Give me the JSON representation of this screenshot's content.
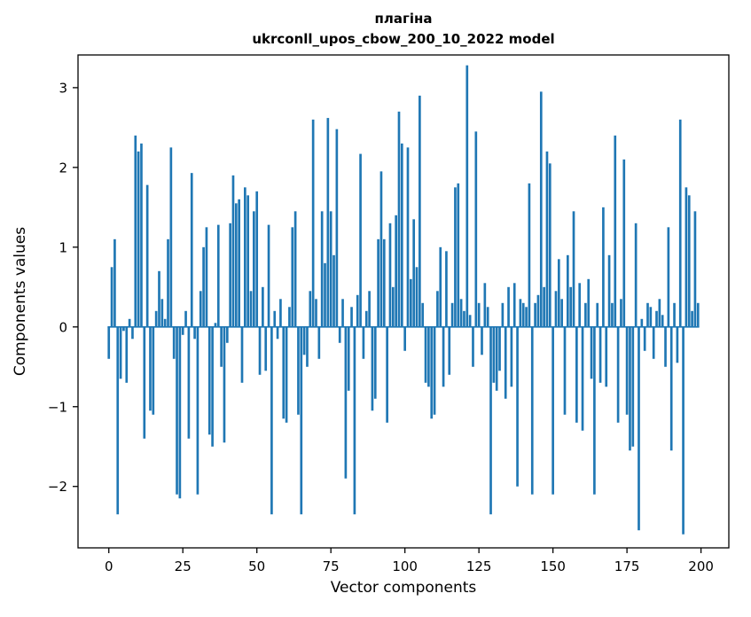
{
  "chart_data": {
    "type": "bar",
    "title": "плагіна",
    "subtitle": "ukrconll_upos_cbow_200_10_2022 model",
    "xlabel": "Vector components",
    "ylabel": "Components values",
    "bar_color": "#1f77b4",
    "grid": false,
    "legend": "none",
    "xlim": [
      -10.4,
      209.4
    ],
    "ylim": [
      -2.77,
      3.41
    ],
    "xticks": [
      0,
      25,
      50,
      75,
      100,
      125,
      150,
      175,
      200
    ],
    "yticks": [
      -2,
      -1,
      0,
      1,
      2,
      3
    ],
    "x_description": "vector component index 0..199",
    "values": [
      -0.4,
      0.75,
      1.1,
      -2.35,
      -0.65,
      -0.05,
      -0.7,
      0.1,
      -0.15,
      2.4,
      2.2,
      2.3,
      -1.4,
      1.78,
      -1.05,
      -1.1,
      0.2,
      0.7,
      0.35,
      0.1,
      1.1,
      2.25,
      -0.4,
      -2.1,
      -2.15,
      -0.1,
      0.2,
      -1.4,
      1.93,
      -0.15,
      -2.1,
      0.45,
      1.0,
      1.25,
      -1.35,
      -1.5,
      0.05,
      1.28,
      -0.5,
      -1.45,
      -0.2,
      1.3,
      1.9,
      1.55,
      1.6,
      -0.7,
      1.75,
      1.65,
      0.45,
      1.45,
      1.7,
      -0.6,
      0.5,
      -0.55,
      1.28,
      -2.35,
      0.2,
      -0.15,
      0.35,
      -1.15,
      -1.2,
      0.25,
      1.25,
      1.45,
      -1.1,
      -2.35,
      -0.35,
      -0.5,
      0.45,
      2.6,
      0.35,
      -0.4,
      1.45,
      0.8,
      2.62,
      1.45,
      0.9,
      2.48,
      -0.2,
      0.35,
      -1.9,
      -0.8,
      0.25,
      -2.35,
      0.4,
      2.17,
      -0.4,
      0.2,
      0.45,
      -1.05,
      -0.9,
      1.1,
      1.95,
      1.1,
      -1.2,
      1.3,
      0.5,
      1.4,
      2.7,
      2.3,
      -0.3,
      2.25,
      0.6,
      1.35,
      0.75,
      2.9,
      0.3,
      -0.7,
      -0.75,
      -1.15,
      -1.1,
      0.45,
      1.0,
      -0.75,
      0.95,
      -0.6,
      0.3,
      1.75,
      1.8,
      0.35,
      0.2,
      3.28,
      0.15,
      -0.5,
      2.45,
      0.3,
      -0.35,
      0.55,
      0.25,
      -2.35,
      -0.7,
      -0.8,
      -0.55,
      0.3,
      -0.9,
      0.5,
      -0.75,
      0.55,
      -2.0,
      0.35,
      0.3,
      0.25,
      1.8,
      -2.1,
      0.3,
      0.4,
      2.95,
      0.5,
      2.2,
      2.05,
      -2.1,
      0.45,
      0.85,
      0.35,
      -1.1,
      0.9,
      0.5,
      1.45,
      -1.2,
      0.55,
      -1.3,
      0.3,
      0.6,
      -0.65,
      -2.1,
      0.3,
      -0.7,
      1.5,
      -0.75,
      0.9,
      0.3,
      2.4,
      -1.2,
      0.35,
      2.1,
      -1.1,
      -1.55,
      -1.5,
      1.3,
      -2.55,
      0.1,
      -0.3,
      0.3,
      0.25,
      -0.4,
      0.2,
      0.35,
      0.15,
      -0.5,
      1.25,
      -1.55,
      0.3,
      -0.45,
      2.6,
      -2.6,
      1.75,
      1.65,
      0.2,
      1.45,
      0.3
    ]
  }
}
